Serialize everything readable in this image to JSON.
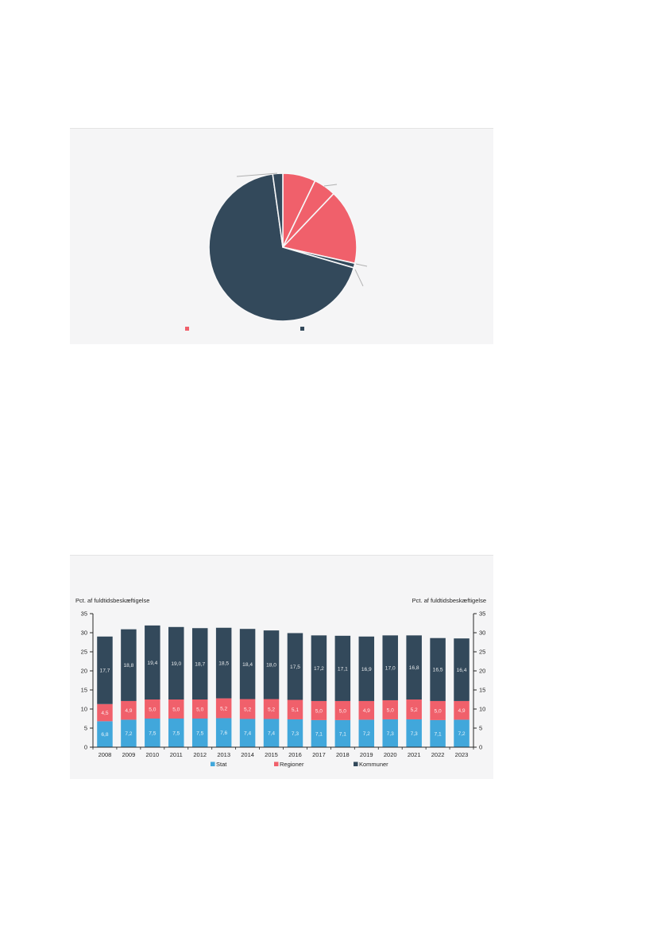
{
  "palette": {
    "stat_blue": "#41a7db",
    "regioner_red": "#f0606b",
    "kommuner_dark": "#33495b",
    "panel_background": "#f5f5f6",
    "panel_border": "#e4e4e4",
    "axis_text": "#262626",
    "leader_line": "#b0b0b0",
    "bar_value_label": "#ffffff"
  },
  "chart_data": [
    {
      "type": "pie",
      "title": "",
      "start_angle_deg": 0,
      "clockwise": true,
      "slices": [
        {
          "label": "",
          "value": 7.2,
          "color": "#f0606b"
        },
        {
          "label": "",
          "value": 4.9,
          "color": "#f0606b"
        },
        {
          "label": "",
          "value": 16.4,
          "color": "#f0606b"
        },
        {
          "label": "",
          "value": 1.0,
          "color": "#33495b"
        },
        {
          "label": "",
          "value": 68.3,
          "color": "#33495b"
        },
        {
          "label": "",
          "value": 2.2,
          "color": "#33495b"
        }
      ],
      "legend": [
        {
          "label": "",
          "color": "#f0606b"
        },
        {
          "label": "",
          "color": "#33495b"
        }
      ],
      "legend_position": "bottom"
    },
    {
      "type": "bar",
      "stacked": true,
      "title": "",
      "ylabel_left": "Pct. af fuldtidsbeskæftigelse",
      "ylabel_right": "Pct. af fuldtidsbeskæftigelse",
      "ylim": [
        0,
        35
      ],
      "ytick_step": 5,
      "yticks": [
        0,
        5,
        10,
        15,
        20,
        25,
        30,
        35
      ],
      "grid": false,
      "decimal_separator": ",",
      "legend_position": "bottom",
      "categories": [
        "2008",
        "2009",
        "2010",
        "2011",
        "2012",
        "2013",
        "2014",
        "2015",
        "2016",
        "2017",
        "2018",
        "2019",
        "2020",
        "2021",
        "2022",
        "2023"
      ],
      "series": [
        {
          "name": "Stat",
          "color": "#41a7db",
          "values": [
            6.8,
            7.2,
            7.5,
            7.5,
            7.5,
            7.6,
            7.4,
            7.4,
            7.3,
            7.1,
            7.1,
            7.2,
            7.3,
            7.3,
            7.1,
            7.2
          ]
        },
        {
          "name": "Regioner",
          "color": "#f0606b",
          "values": [
            4.5,
            4.9,
            5.0,
            5.0,
            5.0,
            5.2,
            5.2,
            5.2,
            5.1,
            5.0,
            5.0,
            4.9,
            5.0,
            5.2,
            5.0,
            4.9
          ]
        },
        {
          "name": "Kommuner",
          "color": "#33495b",
          "values": [
            17.7,
            18.8,
            19.4,
            19.0,
            18.7,
            18.5,
            18.4,
            18.0,
            17.5,
            17.2,
            17.1,
            16.9,
            17.0,
            16.8,
            16.5,
            16.4
          ]
        }
      ]
    }
  ]
}
